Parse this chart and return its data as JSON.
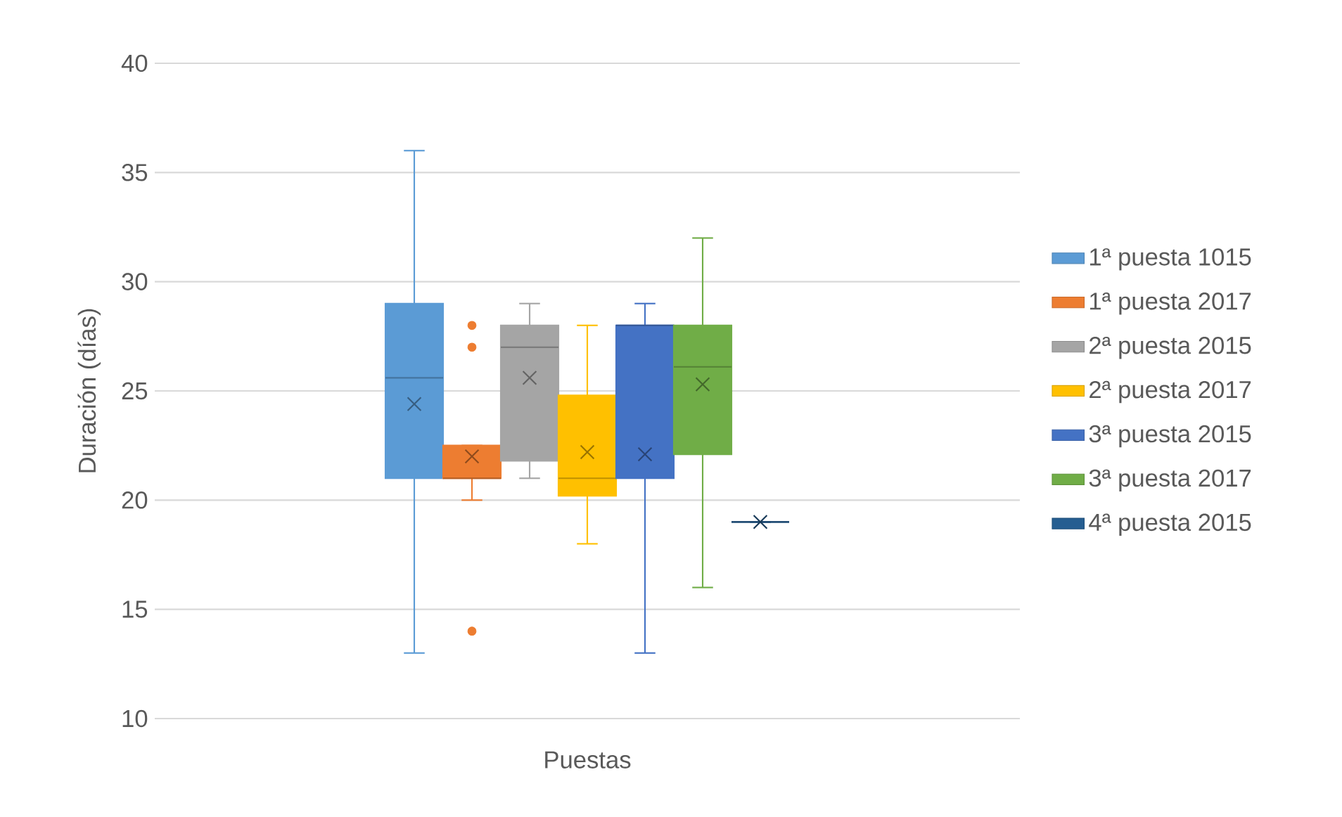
{
  "chart_data": {
    "type": "box",
    "ylabel": "Duración (días)",
    "categories": [
      "Puestas"
    ],
    "ylim": [
      10,
      40
    ],
    "yticks": [
      10,
      15,
      20,
      25,
      30,
      35,
      40
    ],
    "grid": "y",
    "legend": "right",
    "series": [
      {
        "name": "1ª puesta 1015",
        "color": "#5b9bd5",
        "boxes": [
          {
            "low": 13,
            "q1": 21,
            "median": 25.6,
            "q3": 29,
            "high": 36,
            "mean": 24.4
          }
        ]
      },
      {
        "name": "1ª puesta 2017",
        "color": "#ed7d31",
        "boxes": [
          {
            "low": 20,
            "q1": 21,
            "median": 21,
            "q3": 22.5,
            "high": 22.5,
            "mean": 22,
            "outliers": [
              28,
              27,
              14
            ]
          }
        ]
      },
      {
        "name": "2ª puesta 2015",
        "color": "#a5a5a5",
        "boxes": [
          {
            "low": 21,
            "q1": 21.8,
            "median": 27,
            "q3": 28,
            "high": 29,
            "mean": 25.6
          }
        ]
      },
      {
        "name": "2ª puesta 2017",
        "color": "#ffc000",
        "boxes": [
          {
            "low": 18,
            "q1": 20.2,
            "median": 21,
            "q3": 24.8,
            "high": 28,
            "mean": 22.2
          }
        ]
      },
      {
        "name": "3ª puesta 2015",
        "color": "#4472c4",
        "boxes": [
          {
            "low": 13,
            "q1": 21,
            "median": 28,
            "q3": 28,
            "high": 29,
            "mean": 22.1
          }
        ]
      },
      {
        "name": "3ª puesta 2017",
        "color": "#70ad47",
        "boxes": [
          {
            "low": 16,
            "q1": 22.1,
            "median": 26.1,
            "q3": 28,
            "high": 32,
            "mean": 25.3
          }
        ]
      },
      {
        "name": "4ª puesta 2015",
        "color": "#255e91",
        "boxes": [
          {
            "low": 19,
            "q1": 19,
            "median": 19,
            "q3": 19,
            "high": 19,
            "mean": 19
          }
        ]
      }
    ]
  }
}
